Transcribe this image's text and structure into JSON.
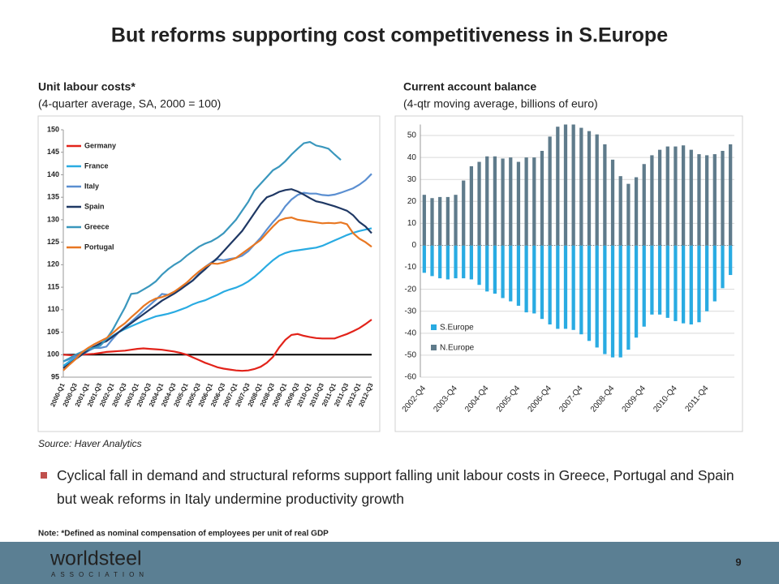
{
  "title": "But reforms supporting cost competitiveness in S.Europe",
  "source": "Source: Haver Analytics",
  "bullet": "Cyclical fall in demand and structural reforms support falling unit labour costs in Greece, Portugal and Spain but weak reforms in Italy undermine productivity growth",
  "note": "Note:  *Defined as nominal compensation of employees per unit of real GDP",
  "footer": {
    "logo": "worldsteel",
    "logo_sub": "ASSOCIATION",
    "page": "9"
  },
  "chart_data": [
    {
      "type": "line",
      "title": "Unit labour costs*",
      "subtitle": "(4-quarter average, SA, 2000 = 100)",
      "categories": [
        "2000-Q1",
        null,
        "2000-Q3",
        null,
        "2001-Q1",
        null,
        "2001-Q3",
        null,
        "2002-Q1",
        null,
        "2002-Q3",
        null,
        "2003-Q1",
        null,
        "2003-Q3",
        null,
        "2004-Q1",
        null,
        "2004-Q3",
        null,
        "2005-Q1",
        null,
        "2005-Q3",
        null,
        "2006-Q1",
        null,
        "2006-Q3",
        null,
        "2007-Q1",
        null,
        "2007-Q3",
        null,
        "2008-Q1",
        null,
        "2008-Q3",
        null,
        "2009-Q1",
        null,
        "2009-Q3",
        null,
        "2010-Q1",
        null,
        "2010-Q3",
        null,
        "2011-Q1",
        null,
        "2011-Q3",
        null,
        "2012-Q1",
        null,
        "2012-Q3"
      ],
      "series": [
        {
          "name": "Germany",
          "color": "#e2231a",
          "values": [
            100,
            99.9,
            99.8,
            100,
            100.1,
            100.2,
            100.4,
            100.6,
            100.7,
            100.8,
            100.9,
            101.1,
            101.3,
            101.4,
            101.3,
            101.2,
            101.1,
            100.9,
            100.7,
            100.4,
            100,
            99.4,
            98.8,
            98.2,
            97.7,
            97.2,
            96.9,
            96.7,
            96.5,
            96.4,
            96.5,
            96.8,
            97.3,
            98.2,
            99.5,
            101.6,
            103.3,
            104.4,
            104.6,
            104.2,
            103.9,
            103.7,
            103.6,
            103.6,
            103.6,
            104.1,
            104.6,
            105.2,
            105.9,
            106.8,
            107.8
          ]
        },
        {
          "name": "France",
          "color": "#29abe2",
          "values": [
            97.5,
            98.5,
            99.3,
            100,
            100.8,
            101.6,
            102.5,
            103.3,
            104.2,
            105,
            105.7,
            106.3,
            106.9,
            107.5,
            108,
            108.5,
            108.8,
            109.1,
            109.5,
            110,
            110.5,
            111.2,
            111.7,
            112.1,
            112.7,
            113.3,
            114,
            114.5,
            114.9,
            115.5,
            116.3,
            117.3,
            118.5,
            119.8,
            121,
            122,
            122.6,
            123,
            123.2,
            123.4,
            123.6,
            123.8,
            124.2,
            124.8,
            125.4,
            126,
            126.6,
            127.1,
            127.5,
            127.8,
            128.1
          ]
        },
        {
          "name": "Italy",
          "color": "#5b8fd1",
          "values": [
            98.5,
            99,
            99.5,
            100,
            100.8,
            101.5,
            101.5,
            101.8,
            103.5,
            105,
            106.2,
            107.3,
            108.5,
            109.8,
            111,
            112.2,
            113.5,
            113.3,
            114,
            114.8,
            115.5,
            116.5,
            118,
            119.5,
            120.5,
            121.2,
            121,
            121.3,
            121.5,
            122,
            123,
            124.5,
            126,
            127.8,
            129.5,
            131,
            133,
            134.5,
            135.5,
            136,
            135.8,
            135.8,
            135.5,
            135.4,
            135.6,
            136,
            136.5,
            137,
            137.8,
            138.8,
            140.2
          ]
        },
        {
          "name": "Spain",
          "color": "#1f3864",
          "values": [
            97,
            98,
            99,
            100,
            101,
            101.8,
            102.5,
            103,
            104,
            105,
            106,
            107,
            108,
            109,
            110,
            111,
            112,
            112.8,
            113.6,
            114.5,
            115.5,
            116.5,
            117.8,
            119,
            120.3,
            121.5,
            123,
            124.5,
            126,
            127.5,
            129.5,
            131.5,
            133.5,
            135,
            135.5,
            136.2,
            136.6,
            136.8,
            136.3,
            135.6,
            134.8,
            134.1,
            133.8,
            133.4,
            133,
            132.5,
            132,
            131,
            129.5,
            128.5,
            127
          ]
        },
        {
          "name": "Greece",
          "color": "#3a97bd",
          "values": [
            98.5,
            99.2,
            100,
            100.6,
            101.2,
            101.5,
            102,
            103.5,
            105.5,
            108,
            110.5,
            113.5,
            113.7,
            114.5,
            115.3,
            116.3,
            117.8,
            119,
            120,
            120.8,
            122,
            123,
            124,
            124.7,
            125.2,
            126,
            127,
            128.5,
            130,
            132,
            134,
            136.5,
            138,
            139.5,
            141,
            141.8,
            143,
            144.5,
            145.8,
            147,
            147.3,
            146.5,
            146.2,
            145.8,
            144.5,
            143.3,
            null,
            null,
            null,
            null,
            null
          ]
        },
        {
          "name": "Portugal",
          "color": "#e87722",
          "values": [
            96.5,
            97.8,
            99,
            100.5,
            101.5,
            102.3,
            103,
            103.7,
            104.8,
            106,
            107,
            108.3,
            109.5,
            110.8,
            111.8,
            112.5,
            112.8,
            113.3,
            114,
            115,
            116,
            117.3,
            118.5,
            119.5,
            120.3,
            120.2,
            120.5,
            121,
            121.5,
            122.5,
            123.5,
            124.5,
            125.5,
            127,
            128.5,
            129.8,
            130.3,
            130.5,
            130,
            129.8,
            129.6,
            129.4,
            129.2,
            129.3,
            129.2,
            129.4,
            129,
            127,
            125.8,
            125,
            124
          ]
        }
      ],
      "reference_line": {
        "value": 100,
        "color": "#000000"
      },
      "ylim": [
        95,
        150
      ],
      "yticks": [
        95,
        100,
        105,
        110,
        115,
        120,
        125,
        130,
        135,
        140,
        145,
        150
      ],
      "legend": "upper left"
    },
    {
      "type": "bar",
      "title": "Current account balance",
      "subtitle": "(4-qtr moving average, billions of euro)",
      "categories": [
        "2002-Q4",
        null,
        null,
        null,
        "2003-Q4",
        null,
        null,
        null,
        "2004-Q4",
        null,
        null,
        null,
        "2005-Q4",
        null,
        null,
        null,
        "2006-Q4",
        null,
        null,
        null,
        "2007-Q4",
        null,
        null,
        null,
        "2008-Q4",
        null,
        null,
        null,
        "2009-Q4",
        null,
        null,
        null,
        "2010-Q4",
        null,
        null,
        null,
        "2011-Q4",
        null,
        null,
        null
      ],
      "series": [
        {
          "name": "S.Europe",
          "color": "#29abe2",
          "values": [
            -12.5,
            -14,
            -15,
            -15.5,
            -15,
            -15,
            -15.5,
            -18,
            -21,
            -22,
            -24,
            -25.5,
            -27.5,
            -30.5,
            -31,
            -33.5,
            -36,
            -38,
            -38,
            -38.5,
            -40.5,
            -43.5,
            -46.5,
            -49.5,
            -51,
            -51,
            -47.5,
            -42,
            -37,
            -31.5,
            -31.5,
            -33,
            -34.5,
            -35.5,
            -36,
            -35,
            -30,
            -25.5,
            -19.5,
            -13.5
          ]
        },
        {
          "name": "N.Europe",
          "color": "#5f7b8b",
          "values": [
            23,
            21.5,
            22,
            22,
            23,
            29.5,
            36,
            38,
            40.5,
            40.5,
            39.5,
            40,
            38,
            40,
            40,
            43,
            49.5,
            54,
            55,
            55,
            53.5,
            52,
            50.5,
            46,
            39,
            31.5,
            28,
            31,
            37,
            41,
            43.5,
            45,
            45,
            45.5,
            43.5,
            41.5,
            41,
            41.5,
            43,
            46
          ]
        }
      ],
      "ylim": [
        -60,
        55
      ],
      "yticks": [
        -60,
        -50,
        -40,
        -30,
        -20,
        -10,
        0,
        10,
        20,
        30,
        40,
        50
      ],
      "legend": "lower left"
    }
  ]
}
